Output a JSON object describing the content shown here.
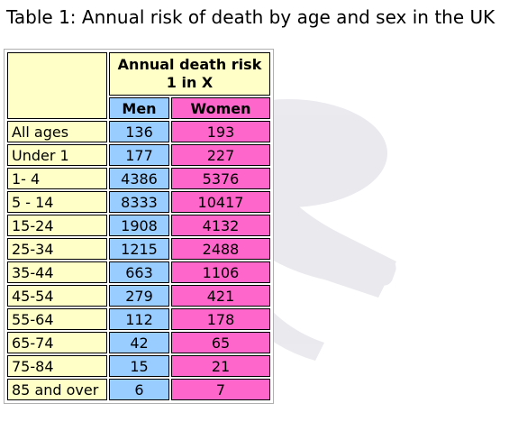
{
  "title": "Table 1: Annual risk of death by age and sex in the UK",
  "table": {
    "header_line1": "Annual death risk",
    "header_line2": "1 in X",
    "col_men": "Men",
    "col_women": "Women",
    "rows": [
      {
        "label": "All ages",
        "men": "136",
        "women": "193"
      },
      {
        "label": "Under 1",
        "men": "177",
        "women": "227"
      },
      {
        "label": "1- 4",
        "men": "4386",
        "women": "5376"
      },
      {
        "label": "5 - 14",
        "men": "8333",
        "women": "10417"
      },
      {
        "label": "15-24",
        "men": "1908",
        "women": "4132"
      },
      {
        "label": "25-34",
        "men": "1215",
        "women": "2488"
      },
      {
        "label": "35-44",
        "men": "663",
        "women": "1106"
      },
      {
        "label": "45-54",
        "men": "279",
        "women": "421"
      },
      {
        "label": "55-64",
        "men": "112",
        "women": "178"
      },
      {
        "label": "65-74",
        "men": "42",
        "women": "65"
      },
      {
        "label": "75-84",
        "men": "15",
        "women": "21"
      },
      {
        "label": "85 and over",
        "men": "6",
        "women": "7"
      }
    ]
  },
  "colors": {
    "label_cell": "#ffffc8",
    "men_cell": "#99ccff",
    "women_cell": "#ff66cc"
  }
}
